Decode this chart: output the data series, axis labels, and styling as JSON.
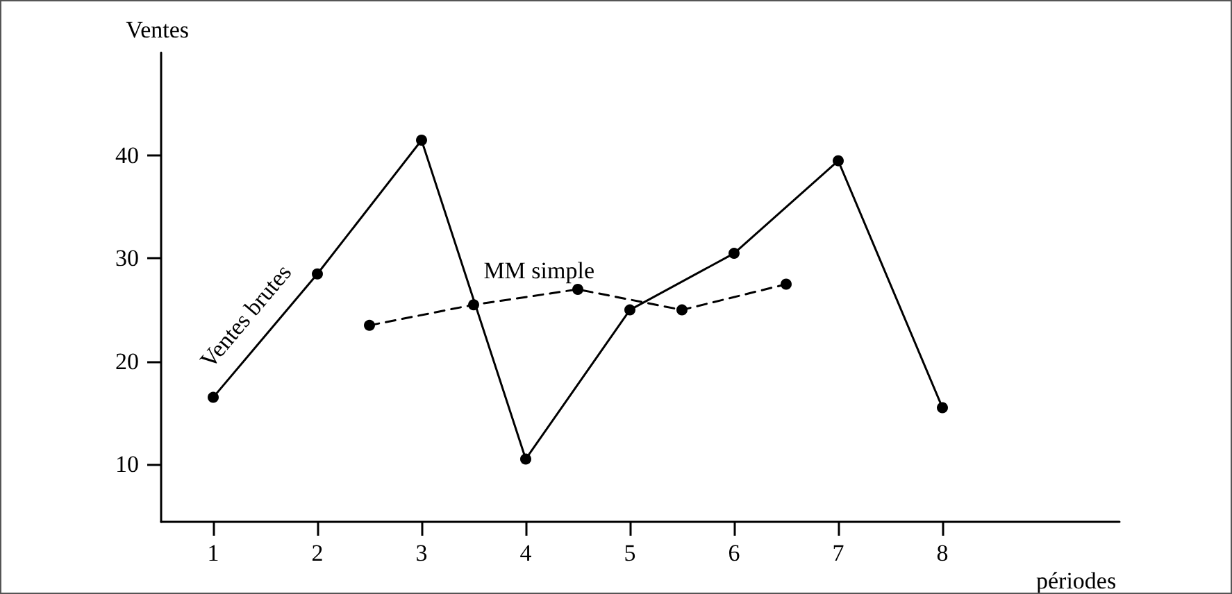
{
  "chart_data": {
    "type": "line",
    "xlabel": "périodes",
    "ylabel": "Ventes",
    "series": [
      {
        "name": "Ventes brutes",
        "color": "#000000",
        "line_style": "solid",
        "x": [
          1,
          2,
          3,
          4,
          5,
          6,
          7,
          8
        ],
        "values": [
          16.5,
          28.5,
          41.5,
          10.5,
          25,
          30.5,
          39.5,
          15.5
        ]
      },
      {
        "name": "MM simple",
        "color": "#000000",
        "line_style": "dashed",
        "x": [
          2.5,
          3.5,
          4.5,
          5.5,
          6.5
        ],
        "values": [
          23.5,
          25.5,
          27,
          25,
          27.5
        ]
      }
    ],
    "xlim": [
      0.5,
      9.7
    ],
    "xticks": [
      1,
      2,
      3,
      4,
      5,
      6,
      7,
      8
    ],
    "ylim": [
      4.4,
      50
    ],
    "yticks": [
      10,
      20,
      30,
      40
    ],
    "grid": false,
    "legend": false,
    "marker": "circle"
  }
}
